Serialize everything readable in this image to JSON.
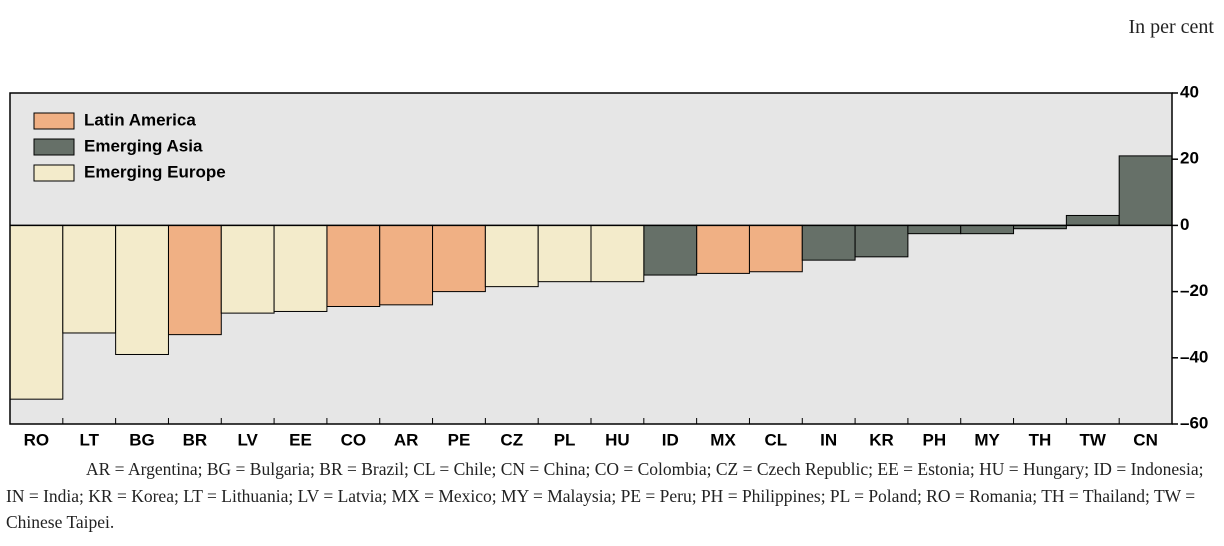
{
  "chart_data": {
    "type": "bar",
    "unit_label": "In per cent",
    "categories": [
      "RO",
      "LT",
      "BG",
      "BR",
      "LV",
      "EE",
      "CO",
      "AR",
      "PE",
      "CZ",
      "PL",
      "HU",
      "ID",
      "MX",
      "CL",
      "IN",
      "KR",
      "PH",
      "MY",
      "TH",
      "TW",
      "CN"
    ],
    "series": [
      {
        "name": "Latin America",
        "color": "#f0b084",
        "values": [
          null,
          null,
          null,
          -33,
          null,
          null,
          -24.5,
          -24,
          -20,
          null,
          null,
          null,
          null,
          -14.5,
          -14,
          null,
          null,
          null,
          null,
          null,
          null,
          null
        ]
      },
      {
        "name": "Emerging Asia",
        "color": "#667068",
        "values": [
          null,
          null,
          null,
          null,
          null,
          null,
          null,
          null,
          null,
          null,
          null,
          null,
          -15,
          null,
          null,
          -10.5,
          -9.5,
          -2.5,
          -2.5,
          -1,
          3,
          21
        ]
      },
      {
        "name": "Emerging Europe",
        "color": "#f3ebcb",
        "values": [
          -52.5,
          -32.5,
          -39,
          null,
          -26.5,
          -26,
          null,
          null,
          null,
          -18.5,
          -17,
          -17,
          null,
          null,
          null,
          null,
          null,
          null,
          null,
          null,
          null,
          null
        ]
      }
    ],
    "ylim": [
      -60,
      40
    ],
    "yticks": [
      {
        "value": -60,
        "label": "–60"
      },
      {
        "value": -40,
        "label": "–40"
      },
      {
        "value": -20,
        "label": "–20"
      },
      0,
      20,
      40
    ],
    "legend": "top-left",
    "note": "AR = Argentina; BG = Bulgaria; BR = Brazil; CL = Chile; CN = China; CO = Colombia; CZ = Czech Republic; EE = Estonia; HU = Hungary; ID = Indonesia; IN = India; KR = Korea; LT = Lithuania; LV = Latvia; MX = Mexico; MY = Malaysia; PE = Peru; PH = Philippines; PL = Poland; RO = Romania; TH = Thailand; TW = Chinese Taipei."
  }
}
